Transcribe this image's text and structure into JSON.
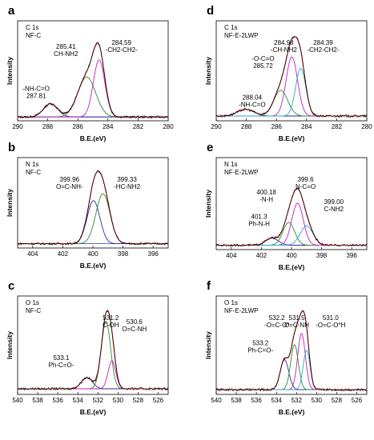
{
  "chart_data": [
    {
      "type": "line",
      "panel": "a",
      "title": "C 1s",
      "subtitle": "NF-C",
      "xlabel": "B.E.(eV)",
      "ylabel": "Intensity",
      "xlim": [
        290,
        280
      ],
      "ylim": [
        0,
        1.05
      ],
      "xticks": [
        "290",
        "288",
        "286",
        "284",
        "282",
        "280"
      ],
      "baseline": 0.04,
      "grid": false,
      "peaks": [
        {
          "center": 287.81,
          "height": 0.14,
          "width": 1.1,
          "label": "-NH-C=O\n287.81"
        },
        {
          "center": 285.41,
          "height": 0.42,
          "width": 1.4,
          "label": "285.41\nCH-NH2"
        },
        {
          "center": 284.59,
          "height": 0.6,
          "width": 0.9,
          "label": "284.59\n-CH2-CH2-"
        }
      ]
    },
    {
      "type": "line",
      "panel": "b",
      "title": "N 1s",
      "subtitle": "NF-C",
      "xlabel": "B.E.(eV)",
      "ylabel": "Intensity",
      "xlim": [
        405,
        395
      ],
      "ylim": [
        0,
        1.05
      ],
      "xticks": [
        "404",
        "402",
        "400",
        "398",
        "396"
      ],
      "baseline": 0.05,
      "grid": false,
      "peaks": [
        {
          "center": 399.96,
          "height": 0.5,
          "width": 1.0,
          "label": "399.96\nO=C-NH-"
        },
        {
          "center": 399.33,
          "height": 0.58,
          "width": 1.1,
          "label": "399.33\n-HC-NH2"
        }
      ]
    },
    {
      "type": "line",
      "panel": "c",
      "title": "O 1s",
      "subtitle": "NF-C",
      "xlabel": "B.E.(eV)",
      "ylabel": "Intensity",
      "xlim": [
        540,
        525
      ],
      "ylim": [
        0,
        1.05
      ],
      "xticks": [
        "540",
        "538",
        "536",
        "534",
        "532",
        "530",
        "528",
        "526"
      ],
      "baseline": 0.06,
      "grid": false,
      "peaks": [
        {
          "center": 533.1,
          "height": 0.12,
          "width": 1.3,
          "label": "533.1\nPh-C=O-"
        },
        {
          "center": 531.2,
          "height": 0.72,
          "width": 1.1,
          "label": "531.2\nC-OH"
        },
        {
          "center": 530.6,
          "height": 0.3,
          "width": 0.9,
          "label": "530.6\nO=C-NH"
        }
      ]
    },
    {
      "type": "line",
      "panel": "d",
      "title": "C 1s",
      "subtitle": "NF-E-2LWP",
      "xlabel": "B.E.(eV)",
      "ylabel": "Intensity",
      "xlim": [
        290,
        280
      ],
      "ylim": [
        0,
        1.05
      ],
      "xticks": [
        "290",
        "288",
        "286",
        "284",
        "282",
        "280"
      ],
      "baseline": 0.05,
      "grid": false,
      "peaks": [
        {
          "center": 288.04,
          "height": 0.07,
          "width": 1.3,
          "label": "288.04\n-NH-C=O"
        },
        {
          "center": 285.72,
          "height": 0.27,
          "width": 1.1,
          "label": "-O-C=O\n285.72"
        },
        {
          "center": 284.98,
          "height": 0.62,
          "width": 0.9,
          "label": "284.98\n-CH-NH2"
        },
        {
          "center": 284.39,
          "height": 0.5,
          "width": 0.8,
          "label": "284.39\n-CH2-CH2-"
        }
      ]
    },
    {
      "type": "line",
      "panel": "e",
      "title": "N 1s",
      "subtitle": "NF-E-2LWP",
      "xlabel": "B.E.(eV)",
      "ylabel": "Intensity",
      "xlim": [
        405,
        395
      ],
      "ylim": [
        0,
        1.05
      ],
      "xticks": [
        "404",
        "402",
        "400",
        "398",
        "396"
      ],
      "baseline": 0.05,
      "grid": false,
      "peaks": [
        {
          "center": 401.3,
          "height": 0.08,
          "width": 1.0,
          "label": "401.3\nPh-N-H"
        },
        {
          "center": 400.18,
          "height": 0.26,
          "width": 0.9,
          "label": "400.18\n-N-H"
        },
        {
          "center": 399.6,
          "height": 0.48,
          "width": 0.9,
          "label": "399.6\nN-C=O"
        },
        {
          "center": 399.0,
          "height": 0.22,
          "width": 1.0,
          "label": "399.00\nC-NH2"
        }
      ]
    },
    {
      "type": "line",
      "panel": "f",
      "title": "O 1s",
      "subtitle": "NF-E-2LWP",
      "xlabel": "B.E.(eV)",
      "ylabel": "Intensity",
      "xlim": [
        540,
        525
      ],
      "ylim": [
        0,
        1.05
      ],
      "xticks": [
        "540",
        "538",
        "536",
        "534",
        "532",
        "530",
        "528",
        "526"
      ],
      "baseline": 0.05,
      "grid": false,
      "peaks": [
        {
          "center": 533.2,
          "height": 0.32,
          "width": 1.0,
          "label": "533.2\nPh-C=O-"
        },
        {
          "center": 532.2,
          "height": 0.48,
          "width": 0.9,
          "label": "532.2\n-O=C-O*"
        },
        {
          "center": 531.5,
          "height": 0.6,
          "width": 0.9,
          "label": "531.5\nO=C-NH"
        },
        {
          "center": 531.0,
          "height": 0.42,
          "width": 0.8,
          "label": "531.0\n-O=C-O*H"
        }
      ]
    }
  ],
  "colors": {
    "envelope_raw": "#000000",
    "envelope_fit": "#e02020",
    "peak_colors": [
      "#2a2aa0",
      "#2e8b2e",
      "#c020c0",
      "#2aa8c8"
    ],
    "baseline": "#3030c0",
    "frame": "#000000"
  }
}
